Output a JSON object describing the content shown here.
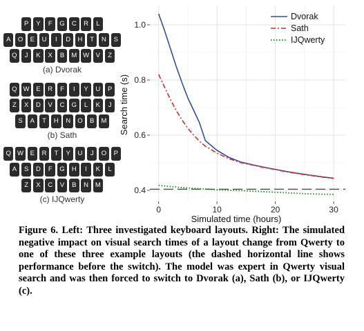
{
  "keyboards": [
    {
      "id": "dvorak",
      "rows": [
        [
          "P",
          "Y",
          "F",
          "G",
          "C",
          "R",
          "L"
        ],
        [
          "A",
          "O",
          "E",
          "U",
          "I",
          "D",
          "H",
          "T",
          "N",
          "S"
        ],
        [
          "Q",
          "J",
          "K",
          "X",
          "B",
          "M",
          "W",
          "V",
          "Z"
        ]
      ],
      "caption": "(a) Dvorak"
    },
    {
      "id": "sath",
      "rows": [
        [
          "Q",
          "W",
          "E",
          "R",
          "F",
          "I",
          "Y",
          "U",
          "P"
        ],
        [
          "Z",
          "X",
          "D",
          "V",
          "C",
          "G",
          "L",
          "K",
          "J"
        ],
        [
          "S",
          "A",
          "T",
          "H",
          "N",
          "O",
          "B",
          "M"
        ]
      ],
      "caption": "(b) Sath"
    },
    {
      "id": "ijqwerty",
      "rows": [
        [
          "Q",
          "W",
          "E",
          "R",
          "T",
          "Y",
          "U",
          "J",
          "O",
          "P"
        ],
        [
          "A",
          "S",
          "D",
          "F",
          "G",
          "H",
          "I",
          "K",
          "L"
        ],
        [
          "Z",
          "X",
          "C",
          "V",
          "B",
          "N",
          "M"
        ]
      ],
      "caption": "(c) IJQwerty"
    }
  ],
  "chart_data": {
    "type": "line",
    "title": "",
    "xlabel": "Simulated time (hours)",
    "ylabel": "Search time (s)",
    "xlim": [
      -1.5,
      32
    ],
    "ylim": [
      0.36,
      1.07
    ],
    "xticks": [
      0,
      10,
      20,
      30
    ],
    "yticks": [
      0.4,
      0.6,
      0.8,
      1.0
    ],
    "ytick_labels": [
      "0.4",
      "0.6",
      "0.8",
      "1.0"
    ],
    "grid": true,
    "legend_position": "top-right",
    "baseline": {
      "value": 0.404,
      "style": "long-dash",
      "color": "#444444"
    },
    "series": [
      {
        "name": "Dvorak",
        "color": "#2f4f9f",
        "style": "solid",
        "x": [
          0,
          1,
          2,
          3,
          4,
          5,
          6,
          7,
          8,
          10,
          12,
          14,
          16,
          18,
          20,
          22,
          24,
          26,
          28,
          30
        ],
        "y": [
          1.04,
          0.98,
          0.915,
          0.85,
          0.79,
          0.735,
          0.69,
          0.645,
          0.58,
          0.545,
          0.52,
          0.503,
          0.493,
          0.484,
          0.476,
          0.468,
          0.461,
          0.455,
          0.449,
          0.444
        ]
      },
      {
        "name": "Sath",
        "color": "#d42a2a",
        "style": "dash-dot",
        "x": [
          0,
          1,
          2,
          3,
          4,
          5,
          6,
          7,
          8,
          10,
          12,
          14,
          16,
          18,
          20,
          22,
          24,
          26,
          28,
          30
        ],
        "y": [
          0.82,
          0.775,
          0.73,
          0.69,
          0.655,
          0.625,
          0.6,
          0.578,
          0.56,
          0.535,
          0.515,
          0.501,
          0.492,
          0.483,
          0.475,
          0.467,
          0.46,
          0.454,
          0.448,
          0.443
        ]
      },
      {
        "name": "IJQwerty",
        "color": "#2e8b2e",
        "style": "dotted",
        "x": [
          0,
          2,
          4,
          6,
          8,
          10,
          12,
          14,
          16,
          18,
          20,
          22,
          24,
          26,
          28,
          30
        ],
        "y": [
          0.418,
          0.414,
          0.41,
          0.407,
          0.405,
          0.402,
          0.4,
          0.399,
          0.397,
          0.395,
          0.393,
          0.391,
          0.389,
          0.387,
          0.386,
          0.385
        ]
      }
    ]
  },
  "caption": {
    "label": "Figure 6.",
    "text": "Left: Three investigated keyboard layouts. Right: The simulated negative impact on visual search times of a layout change from Qwerty to one of these three example layouts (the dashed horizontal line shows performance before the switch). The model was expert in Qwerty visual search and was then forced to switch to Dvorak (a), Sath (b), or IJQwerty (c)."
  }
}
